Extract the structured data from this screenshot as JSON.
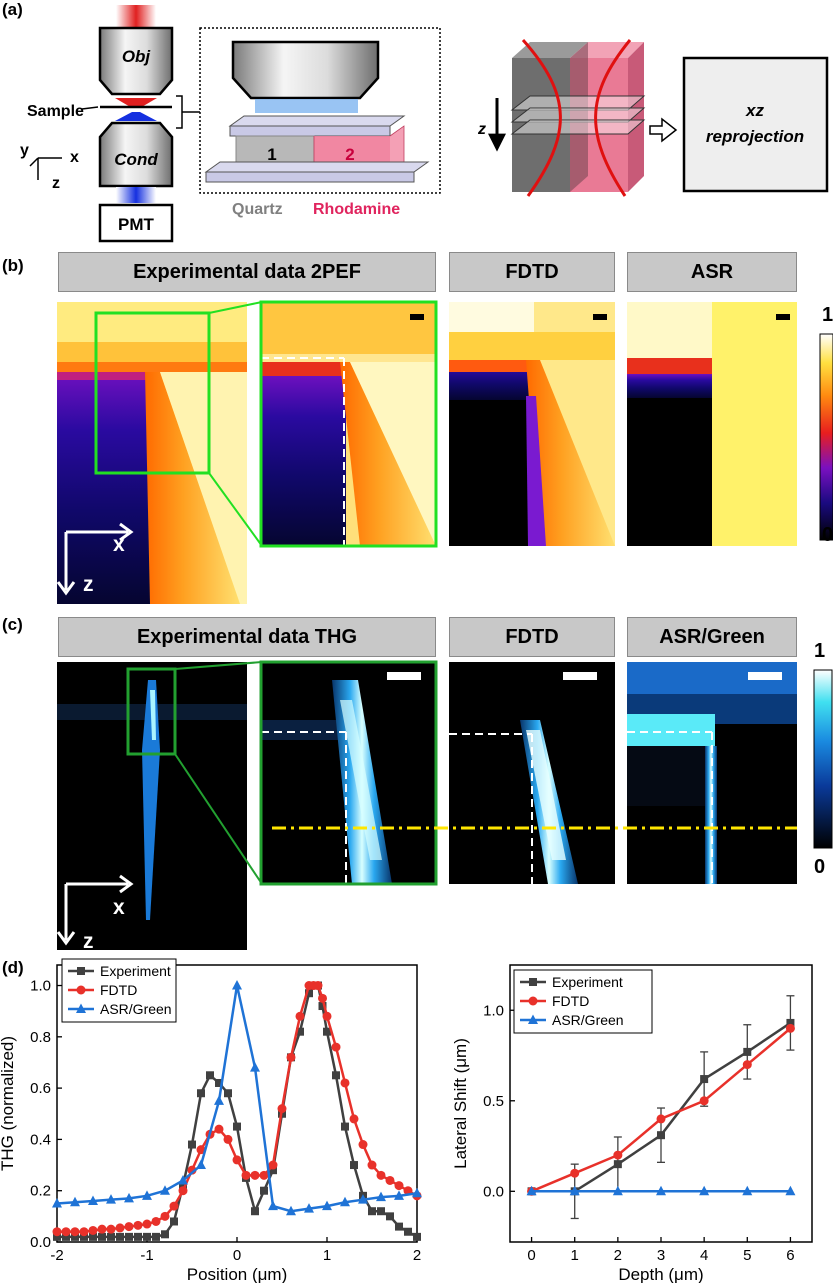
{
  "panels": {
    "a": "(a)",
    "b": "(b)",
    "c": "(c)",
    "d": "(d)"
  },
  "schematic": {
    "obj": "Obj",
    "cond": "Cond",
    "sample": "Sample",
    "pmt": "PMT",
    "axes": {
      "y": "y",
      "x": "x",
      "z": "z"
    },
    "region1": "1",
    "region2": "2",
    "quartz": "Quartz",
    "rhodamine": "Rhodamine",
    "reproj_axis": "z",
    "reproj_box": [
      "xz",
      "reprojection"
    ],
    "colors": {
      "quartz": "#808080",
      "rhodamine": "#e0245e"
    }
  },
  "row_b": {
    "titles": [
      "Experimental data 2PEF",
      "FDTD",
      "ASR"
    ],
    "axis_x": "x",
    "axis_z": "z",
    "cbar_max": "1",
    "cbar_min": "0",
    "colormap": "hot-violet"
  },
  "row_c": {
    "titles": [
      "Experimental data THG",
      "FDTD",
      "ASR/Green"
    ],
    "axis_x": "x",
    "axis_z": "z",
    "cbar_max": "1",
    "cbar_min": "0",
    "colormap": "black-blue-cyan-white"
  },
  "chart_data": [
    {
      "type": "line",
      "xlabel": "Position (μm)",
      "ylabel": "THG (normalized)",
      "xlim": [
        -2,
        2
      ],
      "ylim": [
        0,
        1.08
      ],
      "xticks": [
        "-2",
        "-1",
        "0",
        "1",
        "2"
      ],
      "yticks": [
        "0.0",
        "0.2",
        "0.4",
        "0.6",
        "0.8",
        "1.0"
      ],
      "legend_position": "top-left",
      "series": [
        {
          "name": "Experiment",
          "color": "#404040",
          "marker": "square",
          "x": [
            -2.0,
            -1.9,
            -1.8,
            -1.7,
            -1.6,
            -1.5,
            -1.4,
            -1.3,
            -1.2,
            -1.1,
            -1.0,
            -0.9,
            -0.8,
            -0.7,
            -0.6,
            -0.5,
            -0.4,
            -0.3,
            -0.2,
            -0.1,
            0.0,
            0.1,
            0.2,
            0.3,
            0.4,
            0.5,
            0.6,
            0.7,
            0.8,
            0.85,
            0.9,
            0.95,
            1.0,
            1.1,
            1.2,
            1.3,
            1.4,
            1.5,
            1.6,
            1.7,
            1.8,
            1.9,
            2.0
          ],
          "y": [
            0.02,
            0.02,
            0.02,
            0.02,
            0.02,
            0.02,
            0.02,
            0.02,
            0.02,
            0.02,
            0.02,
            0.02,
            0.03,
            0.08,
            0.22,
            0.38,
            0.58,
            0.65,
            0.62,
            0.58,
            0.45,
            0.25,
            0.12,
            0.2,
            0.28,
            0.5,
            0.72,
            0.82,
            0.97,
            1.0,
            1.0,
            0.92,
            0.82,
            0.65,
            0.45,
            0.3,
            0.18,
            0.12,
            0.12,
            0.1,
            0.06,
            0.04,
            0.02
          ]
        },
        {
          "name": "FDTD",
          "color": "#e8312a",
          "marker": "circle",
          "x": [
            -2.0,
            -1.9,
            -1.8,
            -1.7,
            -1.6,
            -1.5,
            -1.4,
            -1.3,
            -1.2,
            -1.1,
            -1.0,
            -0.9,
            -0.8,
            -0.7,
            -0.6,
            -0.5,
            -0.4,
            -0.3,
            -0.2,
            -0.1,
            0.0,
            0.1,
            0.2,
            0.3,
            0.4,
            0.5,
            0.6,
            0.7,
            0.8,
            0.85,
            0.9,
            0.95,
            1.0,
            1.1,
            1.2,
            1.3,
            1.4,
            1.5,
            1.6,
            1.7,
            1.8,
            1.9,
            2.0
          ],
          "y": [
            0.04,
            0.04,
            0.04,
            0.04,
            0.045,
            0.05,
            0.05,
            0.055,
            0.06,
            0.065,
            0.07,
            0.08,
            0.1,
            0.14,
            0.2,
            0.28,
            0.36,
            0.42,
            0.44,
            0.4,
            0.32,
            0.26,
            0.26,
            0.26,
            0.3,
            0.52,
            0.72,
            0.88,
            1.0,
            1.0,
            1.0,
            0.95,
            0.88,
            0.76,
            0.62,
            0.48,
            0.38,
            0.3,
            0.26,
            0.24,
            0.22,
            0.2,
            0.18
          ]
        },
        {
          "name": "ASR/Green",
          "color": "#1f73d6",
          "marker": "triangle",
          "x": [
            -2.0,
            -1.8,
            -1.6,
            -1.4,
            -1.2,
            -1.0,
            -0.8,
            -0.6,
            -0.4,
            -0.2,
            0.0,
            0.2,
            0.4,
            0.6,
            0.8,
            1.0,
            1.2,
            1.4,
            1.6,
            1.8,
            2.0
          ],
          "y": [
            0.15,
            0.155,
            0.16,
            0.165,
            0.17,
            0.18,
            0.2,
            0.24,
            0.3,
            0.55,
            1.0,
            0.68,
            0.14,
            0.12,
            0.13,
            0.14,
            0.155,
            0.165,
            0.175,
            0.18,
            0.19
          ]
        }
      ]
    },
    {
      "type": "line",
      "xlabel": "Depth (μm)",
      "ylabel": "Lateral Shift (μm)",
      "xlim": [
        -0.5,
        6.5
      ],
      "ylim": [
        -0.28,
        1.25
      ],
      "xticks": [
        "0",
        "1",
        "2",
        "3",
        "4",
        "5",
        "6"
      ],
      "yticks": [
        "0.0",
        "0.5",
        "1.0"
      ],
      "legend_position": "top-left",
      "series": [
        {
          "name": "Experiment",
          "color": "#404040",
          "marker": "square",
          "x": [
            0,
            1,
            2,
            3,
            4,
            5,
            6
          ],
          "y": [
            0.0,
            0.0,
            0.15,
            0.31,
            0.62,
            0.77,
            0.93
          ],
          "error": [
            0.0,
            0.15,
            0.15,
            0.15,
            0.15,
            0.15,
            0.15
          ]
        },
        {
          "name": "FDTD",
          "color": "#e8312a",
          "marker": "circle",
          "x": [
            0,
            1,
            2,
            3,
            4,
            5,
            6
          ],
          "y": [
            0.0,
            0.1,
            0.2,
            0.4,
            0.5,
            0.7,
            0.9
          ]
        },
        {
          "name": "ASR/Green",
          "color": "#1f73d6",
          "marker": "triangle",
          "x": [
            0,
            1,
            2,
            3,
            4,
            5,
            6
          ],
          "y": [
            0.0,
            0.0,
            0.0,
            0.0,
            0.0,
            0.0,
            0.0
          ]
        }
      ]
    }
  ]
}
